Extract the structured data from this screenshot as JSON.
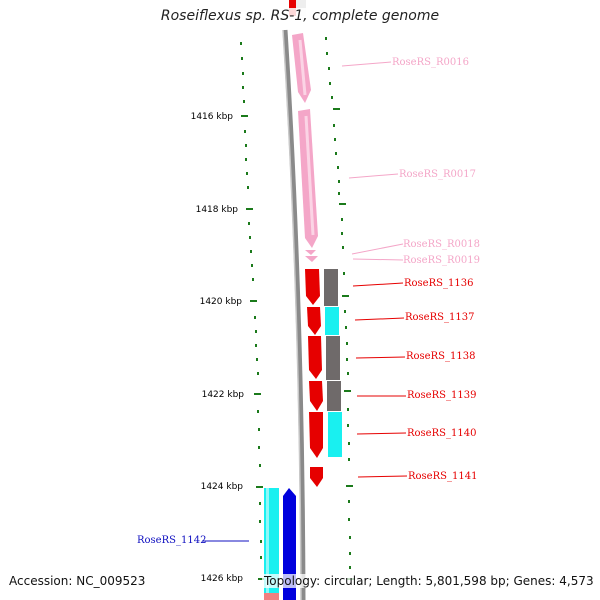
{
  "title": "Roseiflexus sp. RS-1, complete genome",
  "footer": {
    "accession": "Accession: NC_009523",
    "summary": "Topology: circular; Length: 5,801,598 bp; Genes: 4,573"
  },
  "scale_labels": [
    "1416 kbp",
    "1418 kbp",
    "1420 kbp",
    "1422 kbp",
    "1424 kbp",
    "1426 kbp"
  ],
  "features": [
    {
      "id": "RoseRS_R0016",
      "color": "#f4a6c8"
    },
    {
      "id": "RoseRS_R0017",
      "color": "#f4a6c8"
    },
    {
      "id": "RoseRS_R0018",
      "color": "#f4a6c8"
    },
    {
      "id": "RoseRS_R0019",
      "color": "#f4a6c8"
    },
    {
      "id": "RoseRS_1136",
      "color": "#e60000"
    },
    {
      "id": "RoseRS_1137",
      "color": "#e60000"
    },
    {
      "id": "RoseRS_1138",
      "color": "#e60000"
    },
    {
      "id": "RoseRS_1139",
      "color": "#e60000"
    },
    {
      "id": "RoseRS_1140",
      "color": "#e60000"
    },
    {
      "id": "RoseRS_1141",
      "color": "#e60000"
    },
    {
      "id": "RoseRS_1142",
      "color": "#1010c0"
    }
  ],
  "colors": {
    "rna": "#f4a6c8",
    "cds_red": "#e60000",
    "cds_blue": "#0000dd",
    "cog_gray": "#6f6a6a",
    "cog_cyan": "#19f0f0",
    "scale_green": "#1b7a1b",
    "backbone": "#8a8a8a"
  }
}
